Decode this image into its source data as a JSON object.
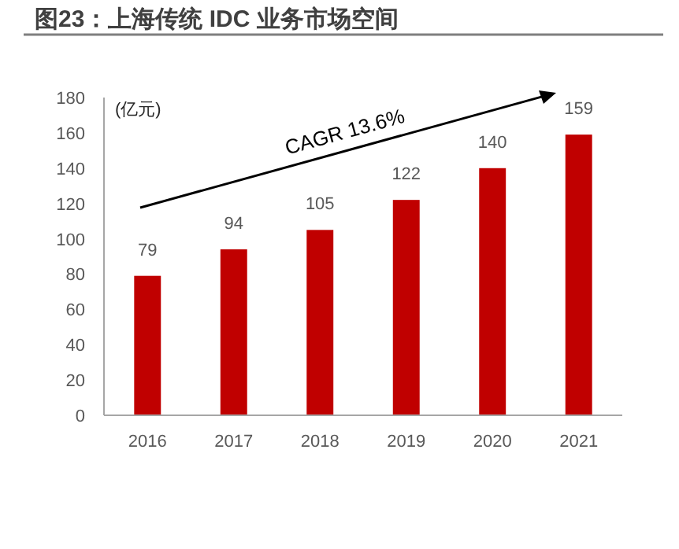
{
  "chart_data": {
    "type": "bar",
    "title": "图23：上海传统 IDC 业务市场空间",
    "ylabel": "(亿元)",
    "categories": [
      "2016",
      "2017",
      "2018",
      "2019",
      "2020",
      "2021"
    ],
    "values": [
      79,
      94,
      105,
      122,
      140,
      159
    ],
    "color": "#c00000",
    "ylim": [
      0,
      180
    ],
    "yticks": [
      0,
      20,
      40,
      60,
      80,
      100,
      120,
      140,
      160,
      180
    ],
    "data_labels": true,
    "annotations": [
      "CAGR 13.6%"
    ]
  }
}
